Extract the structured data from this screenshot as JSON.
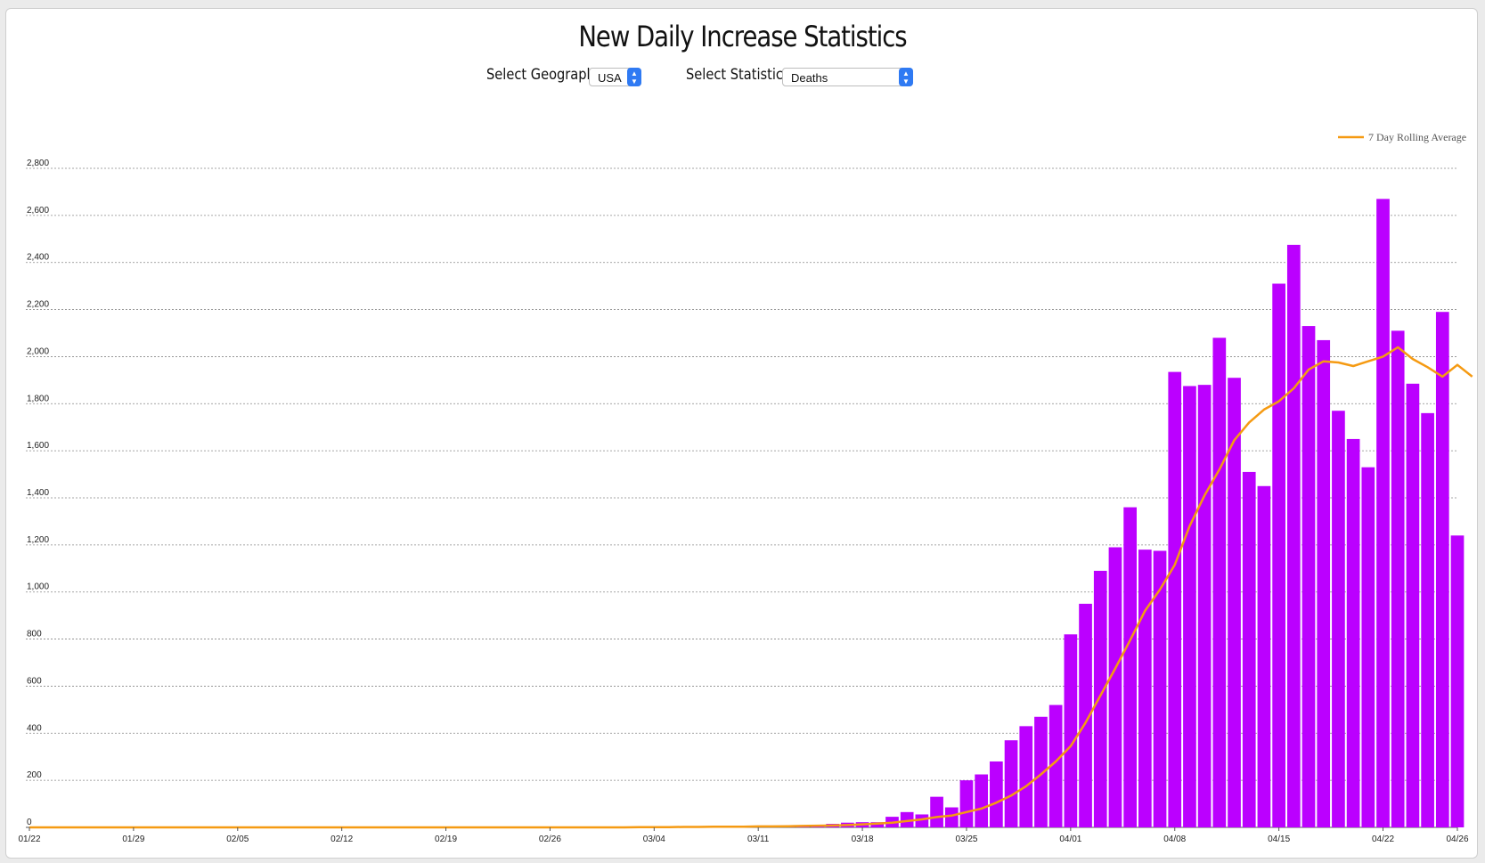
{
  "page": {
    "title": "New Daily Increase Statistics",
    "geography_label": "Select Geography:",
    "geography_value": "USA",
    "statistics_label": "Select Statistics:",
    "statistics_value": "Deaths"
  },
  "colors": {
    "bar": "#bb00ff",
    "line": "#f59a12",
    "grid": "#888888"
  },
  "chart_data": {
    "type": "bar",
    "legend": {
      "entries": [
        "7 Day Rolling Average"
      ],
      "placement": "top-right"
    },
    "x_tick_labels": [
      "01/22",
      "01/29",
      "02/05",
      "02/12",
      "02/19",
      "02/26",
      "03/04",
      "03/11",
      "03/18",
      "03/25",
      "04/01",
      "04/08",
      "04/15",
      "04/22",
      "04/26"
    ],
    "y_tick_labels": [
      "0",
      "200",
      "400",
      "600",
      "800",
      "1,000",
      "1,200",
      "1,400",
      "1,600",
      "1,800",
      "2,000",
      "2,200",
      "2,400",
      "2,600",
      "2,800"
    ],
    "ylim": [
      0,
      2800
    ],
    "grid": true,
    "x_start": "01/22",
    "x_end": "04/26",
    "series": [
      {
        "type": "bar",
        "first_date": "01/22",
        "values": [
          0,
          0,
          0,
          0,
          0,
          0,
          0,
          0,
          0,
          0,
          0,
          0,
          0,
          0,
          0,
          0,
          0,
          0,
          0,
          0,
          0,
          0,
          0,
          0,
          0,
          0,
          0,
          0,
          0,
          0,
          0,
          0,
          0,
          0,
          0,
          0,
          0,
          0,
          0,
          1,
          1,
          3,
          4,
          2,
          5,
          2,
          2,
          4,
          5,
          7,
          5,
          7,
          9,
          10,
          15,
          20,
          22,
          22,
          45,
          65,
          55,
          130,
          85,
          200,
          225,
          280,
          370,
          430,
          470,
          520,
          820,
          950,
          1090,
          1190,
          1360,
          1180,
          1175,
          1935,
          1875,
          1880,
          2080,
          1910,
          1510,
          1450,
          2310,
          2475,
          2130,
          2070,
          1770,
          1650,
          1530,
          2670,
          2110,
          1885,
          1760,
          2190,
          1240
        ]
      },
      {
        "type": "line",
        "name": "7 Day Rolling Average",
        "first_date": "01/22",
        "values": [
          0,
          0,
          0,
          0,
          0,
          0,
          0,
          0,
          0,
          0,
          0,
          0,
          0,
          0,
          0,
          0,
          0,
          0,
          0,
          0,
          0,
          0,
          0,
          0,
          0,
          0,
          0,
          0,
          0,
          0,
          0,
          0,
          0,
          0,
          0,
          0,
          0,
          0,
          0,
          0,
          0,
          1,
          1,
          1,
          2,
          2,
          3,
          3,
          3,
          4,
          4,
          5,
          6,
          7,
          8,
          10,
          13,
          16,
          20,
          27,
          34,
          44,
          50,
          65,
          80,
          105,
          135,
          175,
          225,
          280,
          345,
          445,
          560,
          675,
          795,
          920,
          1010,
          1115,
          1280,
          1410,
          1520,
          1645,
          1720,
          1775,
          1810,
          1865,
          1945,
          1980,
          1975,
          1960,
          1980,
          2000,
          2040,
          1990,
          1955,
          1915,
          1965,
          1915
        ]
      }
    ]
  }
}
